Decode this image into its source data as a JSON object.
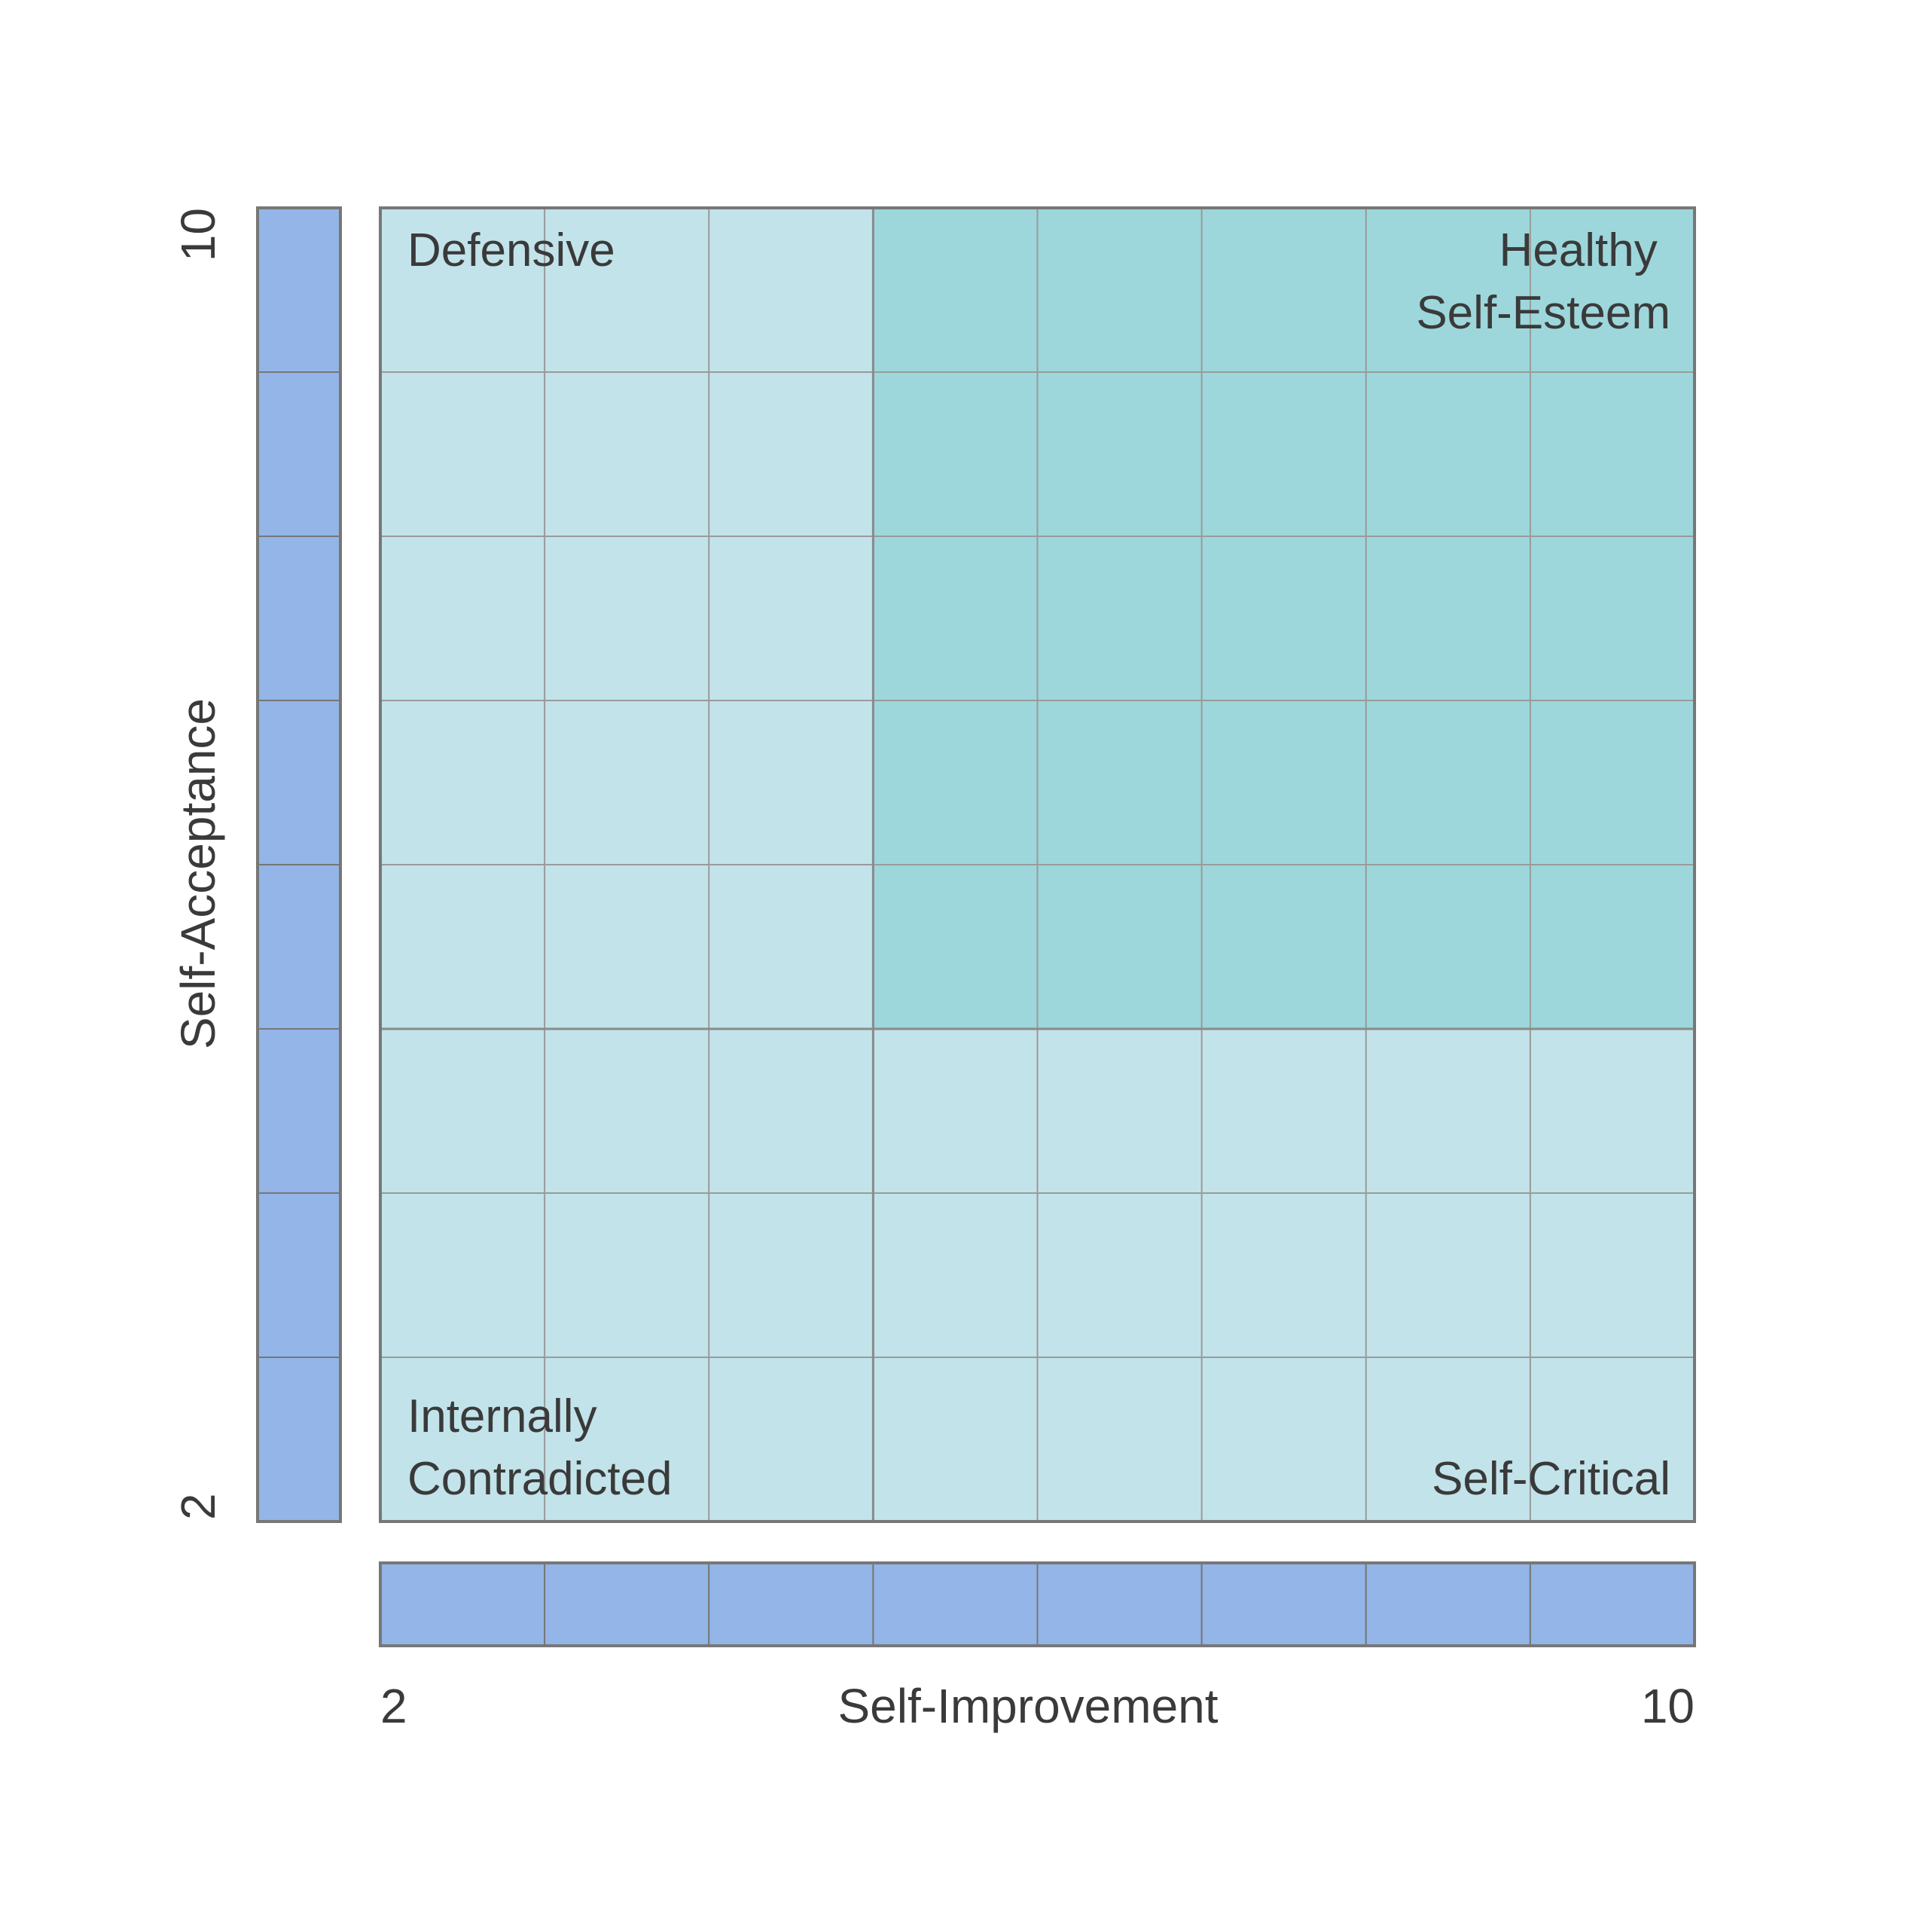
{
  "chart_data": {
    "type": "heatmap",
    "x_axis": {
      "label": "Self-Improvement",
      "min_label": "2",
      "max_label": "10",
      "min": 2,
      "max": 10,
      "segments": 8
    },
    "y_axis": {
      "label": "Self-Acceptance",
      "min_label": "2",
      "max_label": "10",
      "min": 2,
      "max": 10,
      "segments": 8
    },
    "grid": true,
    "highlight_region": {
      "x_range": [
        5,
        10
      ],
      "y_range": [
        5,
        10
      ]
    },
    "quadrants": {
      "top_left": [
        "Defensive"
      ],
      "top_right": [
        "Healthy",
        "Self-Esteem"
      ],
      "bottom_left": [
        "Internally",
        "Contradicted"
      ],
      "bottom_right": [
        "Self-Critical"
      ]
    }
  },
  "colors": {
    "light_cell": "#c2e3ea",
    "highlight_cell": "#9dd7db",
    "axis_bar": "#93b5e8",
    "grid_line": "#9a9a9a",
    "border": "#777777",
    "text": "#3a3a3a"
  }
}
